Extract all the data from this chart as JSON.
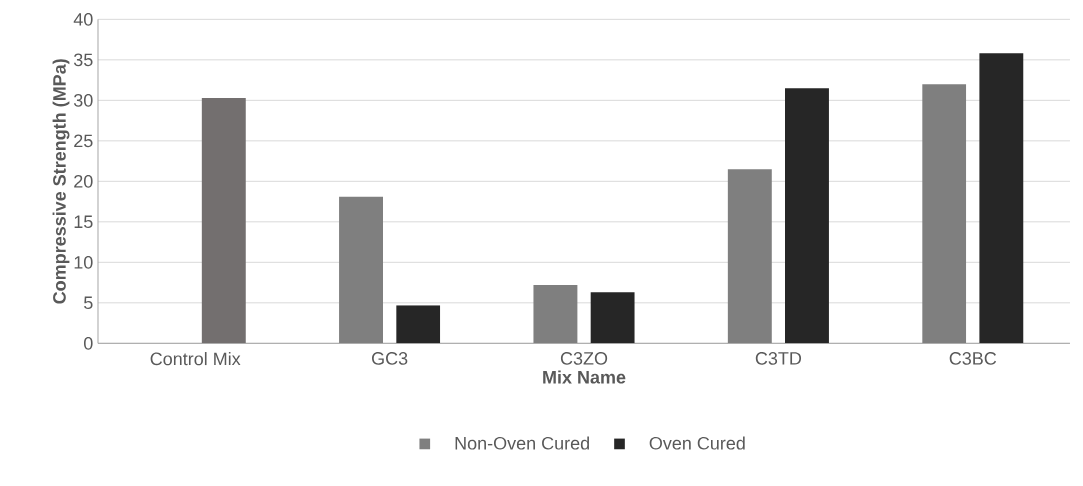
{
  "chart_data": {
    "type": "bar",
    "xlabel": "Mix Name",
    "ylabel": "Compressive Strength (MPa)",
    "categories": [
      "Control Mix",
      "GC3",
      "C3ZO",
      "C3TD",
      "C3BC"
    ],
    "series": [
      {
        "name": "Non-Oven Cured",
        "color": "#7f7f7f",
        "values": [
          null,
          18.1,
          7.2,
          21.5,
          32.0
        ]
      },
      {
        "name": "Oven Cured",
        "color": "#262626",
        "colors": [
          "#736f6f",
          "#262626",
          "#262626",
          "#262626",
          "#262626"
        ],
        "values": [
          30.3,
          4.7,
          6.3,
          31.5,
          35.8
        ]
      }
    ],
    "ylim": [
      0,
      40
    ],
    "yticks": [
      0,
      5,
      10,
      15,
      20,
      25,
      30,
      35,
      40
    ],
    "grid": "y",
    "legend": "bottom"
  }
}
